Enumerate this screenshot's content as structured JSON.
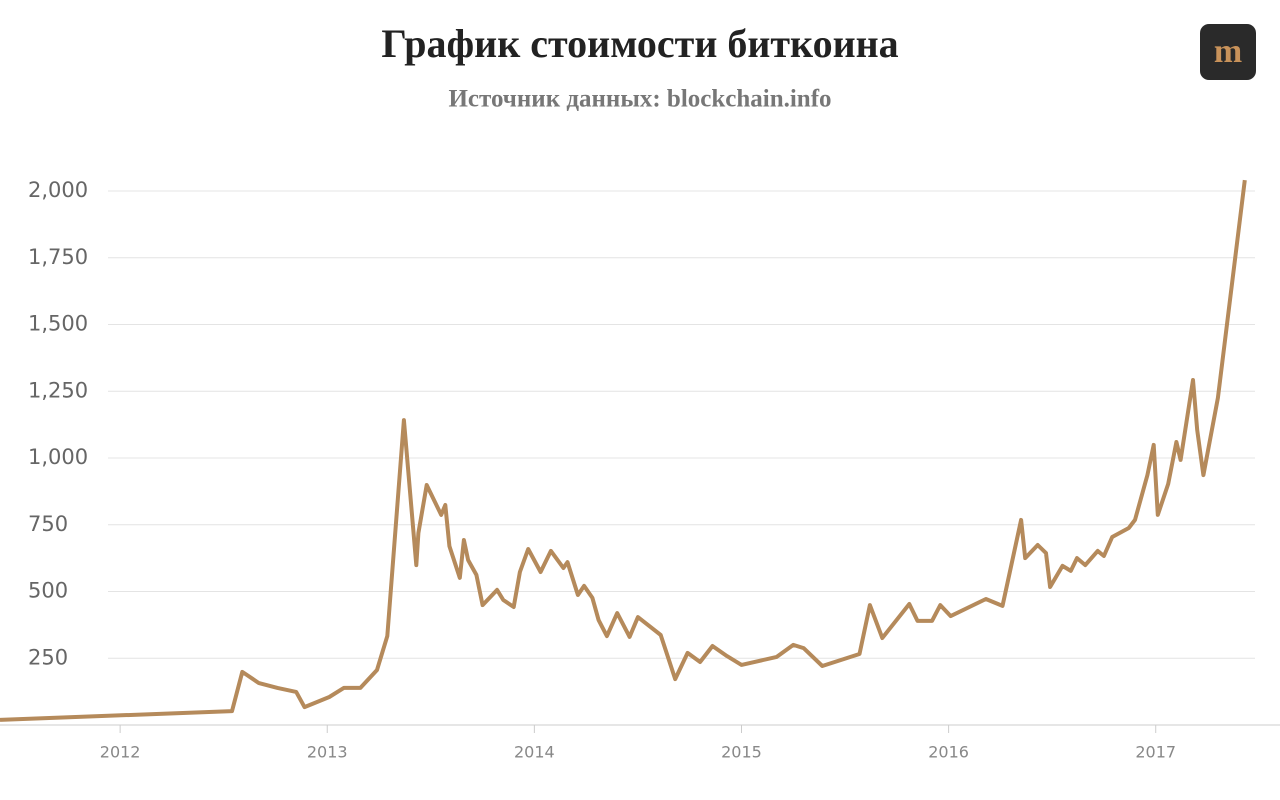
{
  "logo": "m",
  "chart_data": {
    "type": "line",
    "title": "График стоимости биткоина",
    "subtitle": "Источник данных: blockchain.info",
    "color": "#b58a5b",
    "grid": true,
    "xlim": [
      2011.42,
      2017.6
    ],
    "xticks": [
      2012,
      2013,
      2014,
      2015,
      2016,
      2017
    ],
    "ylim": [
      0,
      2100
    ],
    "yticks": [
      250,
      500,
      750,
      {
        "value": 1000,
        "label": "1,000"
      },
      {
        "value": 1250,
        "label": "1,250"
      },
      {
        "value": 1500,
        "label": "1,500"
      },
      {
        "value": 1750,
        "label": "1,750"
      },
      {
        "value": 2000,
        "label": "2,000"
      }
    ],
    "x": [
      2011.42,
      2012.54,
      2012.59,
      2012.67,
      2012.76,
      2012.85,
      2012.89,
      2013.01,
      2013.08,
      2013.16,
      2013.24,
      2013.29,
      2013.37,
      2013.43,
      2013.44,
      2013.48,
      2013.55,
      2013.57,
      2013.59,
      2013.64,
      2013.66,
      2013.68,
      2013.72,
      2013.75,
      2013.82,
      2013.85,
      2013.9,
      2013.93,
      2013.97,
      2014.03,
      2014.08,
      2014.14,
      2014.16,
      2014.21,
      2014.24,
      2014.28,
      2014.31,
      2014.35,
      2014.4,
      2014.46,
      2014.5,
      2014.61,
      2014.68,
      2014.74,
      2014.8,
      2014.86,
      2014.93,
      2015.0,
      2015.17,
      2015.25,
      2015.3,
      2015.39,
      2015.57,
      2015.62,
      2015.68,
      2015.81,
      2015.85,
      2015.92,
      2015.96,
      2016.01,
      2016.18,
      2016.26,
      2016.35,
      2016.37,
      2016.43,
      2016.47,
      2016.49,
      2016.55,
      2016.59,
      2016.62,
      2016.66,
      2016.72,
      2016.75,
      2016.79,
      2016.87,
      2016.9,
      2016.96,
      2016.99,
      2017.01,
      2017.06,
      2017.1,
      2017.12,
      2017.18,
      2017.2,
      2017.23,
      2017.3,
      2017.43
    ],
    "values": [
      19,
      52,
      199,
      157,
      139,
      124,
      67,
      105,
      139,
      139,
      206,
      333,
      1142,
      599,
      719,
      899,
      787,
      824,
      670,
      551,
      693,
      618,
      562,
      449,
      506,
      468,
      442,
      573,
      659,
      573,
      652,
      588,
      610,
      487,
      521,
      476,
      393,
      333,
      419,
      330,
      404,
      337,
      172,
      270,
      236,
      296,
      258,
      225,
      255,
      300,
      288,
      221,
      266,
      449,
      326,
      453,
      390,
      390,
      449,
      408,
      472,
      446,
      768,
      625,
      674,
      644,
      517,
      596,
      577,
      625,
      599,
      652,
      633,
      704,
      738,
      768,
      936,
      1049,
      787,
      903,
      1060,
      993,
      1292,
      1105,
      936,
      1225,
      2041
    ]
  }
}
